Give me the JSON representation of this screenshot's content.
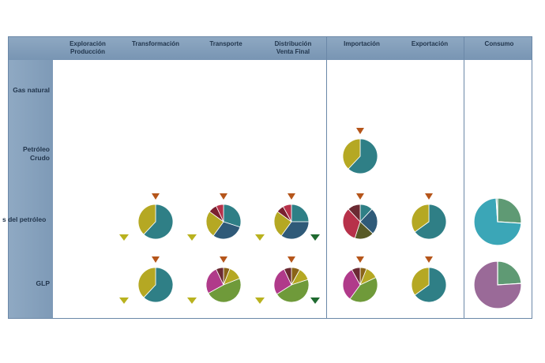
{
  "colors": {
    "teal": "#2f7f86",
    "olive": "#b5a823",
    "navy": "#2f5a78",
    "crimson": "#b7314a",
    "darkred": "#6b2a33",
    "green": "#6f9a3a",
    "magenta": "#b03a8a",
    "brown": "#8a6418",
    "darkolive": "#585a26",
    "maroon": "#7a2030",
    "consumo_teal": "#3ba6b7",
    "consumo_green": "#5f9a74",
    "consumo_mauve": "#9a6a98",
    "marker_orange": "#b5551a",
    "marker_yellow": "#b9b21f",
    "marker_green": "#1f6a30"
  },
  "columns": [
    {
      "line1": "Exploración",
      "line2": "Producción"
    },
    {
      "line1": "Transformación",
      "line2": ""
    },
    {
      "line1": "Transporte",
      "line2": ""
    },
    {
      "line1": "Distribución",
      "line2": "Venta Final"
    },
    {
      "line1": "Importación",
      "line2": ""
    },
    {
      "line1": "Exportación",
      "line2": ""
    },
    {
      "line1": "Consumo",
      "line2": ""
    }
  ],
  "rows": [
    {
      "line1": "Gas natural",
      "line2": ""
    },
    {
      "line1": "Petróleo",
      "line2": "Crudo"
    },
    {
      "line1": "s del petróleo",
      "line2": ""
    },
    {
      "line1": "GLP",
      "line2": ""
    }
  ],
  "cells": [
    {
      "id": "crudo-importacion",
      "row": 1,
      "col": 4,
      "markers": [
        "top-orange"
      ],
      "slices": [
        {
          "value": 62,
          "color": "teal"
        },
        {
          "value": 38,
          "color": "olive"
        }
      ]
    },
    {
      "id": "derivados-transformacion",
      "row": 2,
      "col": 1,
      "markers": [
        "top-orange",
        "left-yellow"
      ],
      "slices": [
        {
          "value": 62,
          "color": "teal"
        },
        {
          "value": 38,
          "color": "olive"
        }
      ]
    },
    {
      "id": "derivados-transporte",
      "row": 2,
      "col": 2,
      "markers": [
        "top-orange",
        "left-yellow"
      ],
      "slices": [
        {
          "value": 30,
          "color": "teal"
        },
        {
          "value": 30,
          "color": "navy"
        },
        {
          "value": 25,
          "color": "olive"
        },
        {
          "value": 8,
          "color": "maroon"
        },
        {
          "value": 7,
          "color": "crimson"
        }
      ]
    },
    {
      "id": "derivados-distribucion",
      "row": 2,
      "col": 3,
      "markers": [
        "top-orange",
        "left-yellow",
        "right-green"
      ],
      "slices": [
        {
          "value": 25,
          "color": "teal"
        },
        {
          "value": 35,
          "color": "navy"
        },
        {
          "value": 25,
          "color": "olive"
        },
        {
          "value": 7,
          "color": "maroon"
        },
        {
          "value": 8,
          "color": "crimson"
        }
      ]
    },
    {
      "id": "derivados-importacion",
      "row": 2,
      "col": 4,
      "markers": [
        "top-orange"
      ],
      "slices": [
        {
          "value": 12,
          "color": "teal"
        },
        {
          "value": 25,
          "color": "navy"
        },
        {
          "value": 18,
          "color": "darkolive"
        },
        {
          "value": 33,
          "color": "crimson"
        },
        {
          "value": 12,
          "color": "darkred"
        }
      ]
    },
    {
      "id": "derivados-exportacion",
      "row": 2,
      "col": 5,
      "markers": [
        "top-orange"
      ],
      "slices": [
        {
          "value": 65,
          "color": "teal"
        },
        {
          "value": 35,
          "color": "olive"
        }
      ]
    },
    {
      "id": "derivados-consumo",
      "row": 2,
      "col": 6,
      "markers": [],
      "large": true,
      "slices": [
        {
          "value": 26,
          "color": "consumo_green"
        },
        {
          "value": 73,
          "color": "consumo_teal"
        },
        {
          "value": 1,
          "color": "consumo_green"
        }
      ]
    },
    {
      "id": "glp-transformacion",
      "row": 3,
      "col": 1,
      "markers": [
        "top-orange",
        "left-yellow"
      ],
      "slices": [
        {
          "value": 62,
          "color": "teal"
        },
        {
          "value": 38,
          "color": "olive"
        }
      ]
    },
    {
      "id": "glp-transporte",
      "row": 3,
      "col": 2,
      "markers": [
        "top-orange",
        "left-yellow"
      ],
      "slices": [
        {
          "value": 6,
          "color": "brown"
        },
        {
          "value": 13,
          "color": "olive"
        },
        {
          "value": 48,
          "color": "green"
        },
        {
          "value": 26,
          "color": "magenta"
        },
        {
          "value": 7,
          "color": "darkred"
        }
      ]
    },
    {
      "id": "glp-distribucion",
      "row": 3,
      "col": 3,
      "markers": [
        "top-orange",
        "left-yellow",
        "right-green"
      ],
      "slices": [
        {
          "value": 8,
          "color": "brown"
        },
        {
          "value": 12,
          "color": "olive"
        },
        {
          "value": 46,
          "color": "green"
        },
        {
          "value": 27,
          "color": "magenta"
        },
        {
          "value": 7,
          "color": "darkred"
        }
      ]
    },
    {
      "id": "glp-importacion",
      "row": 3,
      "col": 4,
      "markers": [
        "top-orange"
      ],
      "slices": [
        {
          "value": 6,
          "color": "brown"
        },
        {
          "value": 12,
          "color": "olive"
        },
        {
          "value": 42,
          "color": "green"
        },
        {
          "value": 32,
          "color": "magenta"
        },
        {
          "value": 8,
          "color": "darkred"
        }
      ]
    },
    {
      "id": "glp-exportacion",
      "row": 3,
      "col": 5,
      "markers": [
        "top-orange"
      ],
      "slices": [
        {
          "value": 65,
          "color": "teal"
        },
        {
          "value": 35,
          "color": "olive"
        }
      ]
    },
    {
      "id": "glp-consumo",
      "row": 3,
      "col": 6,
      "markers": [],
      "large": true,
      "slices": [
        {
          "value": 24,
          "color": "consumo_green"
        },
        {
          "value": 76,
          "color": "consumo_mauve"
        }
      ]
    }
  ]
}
